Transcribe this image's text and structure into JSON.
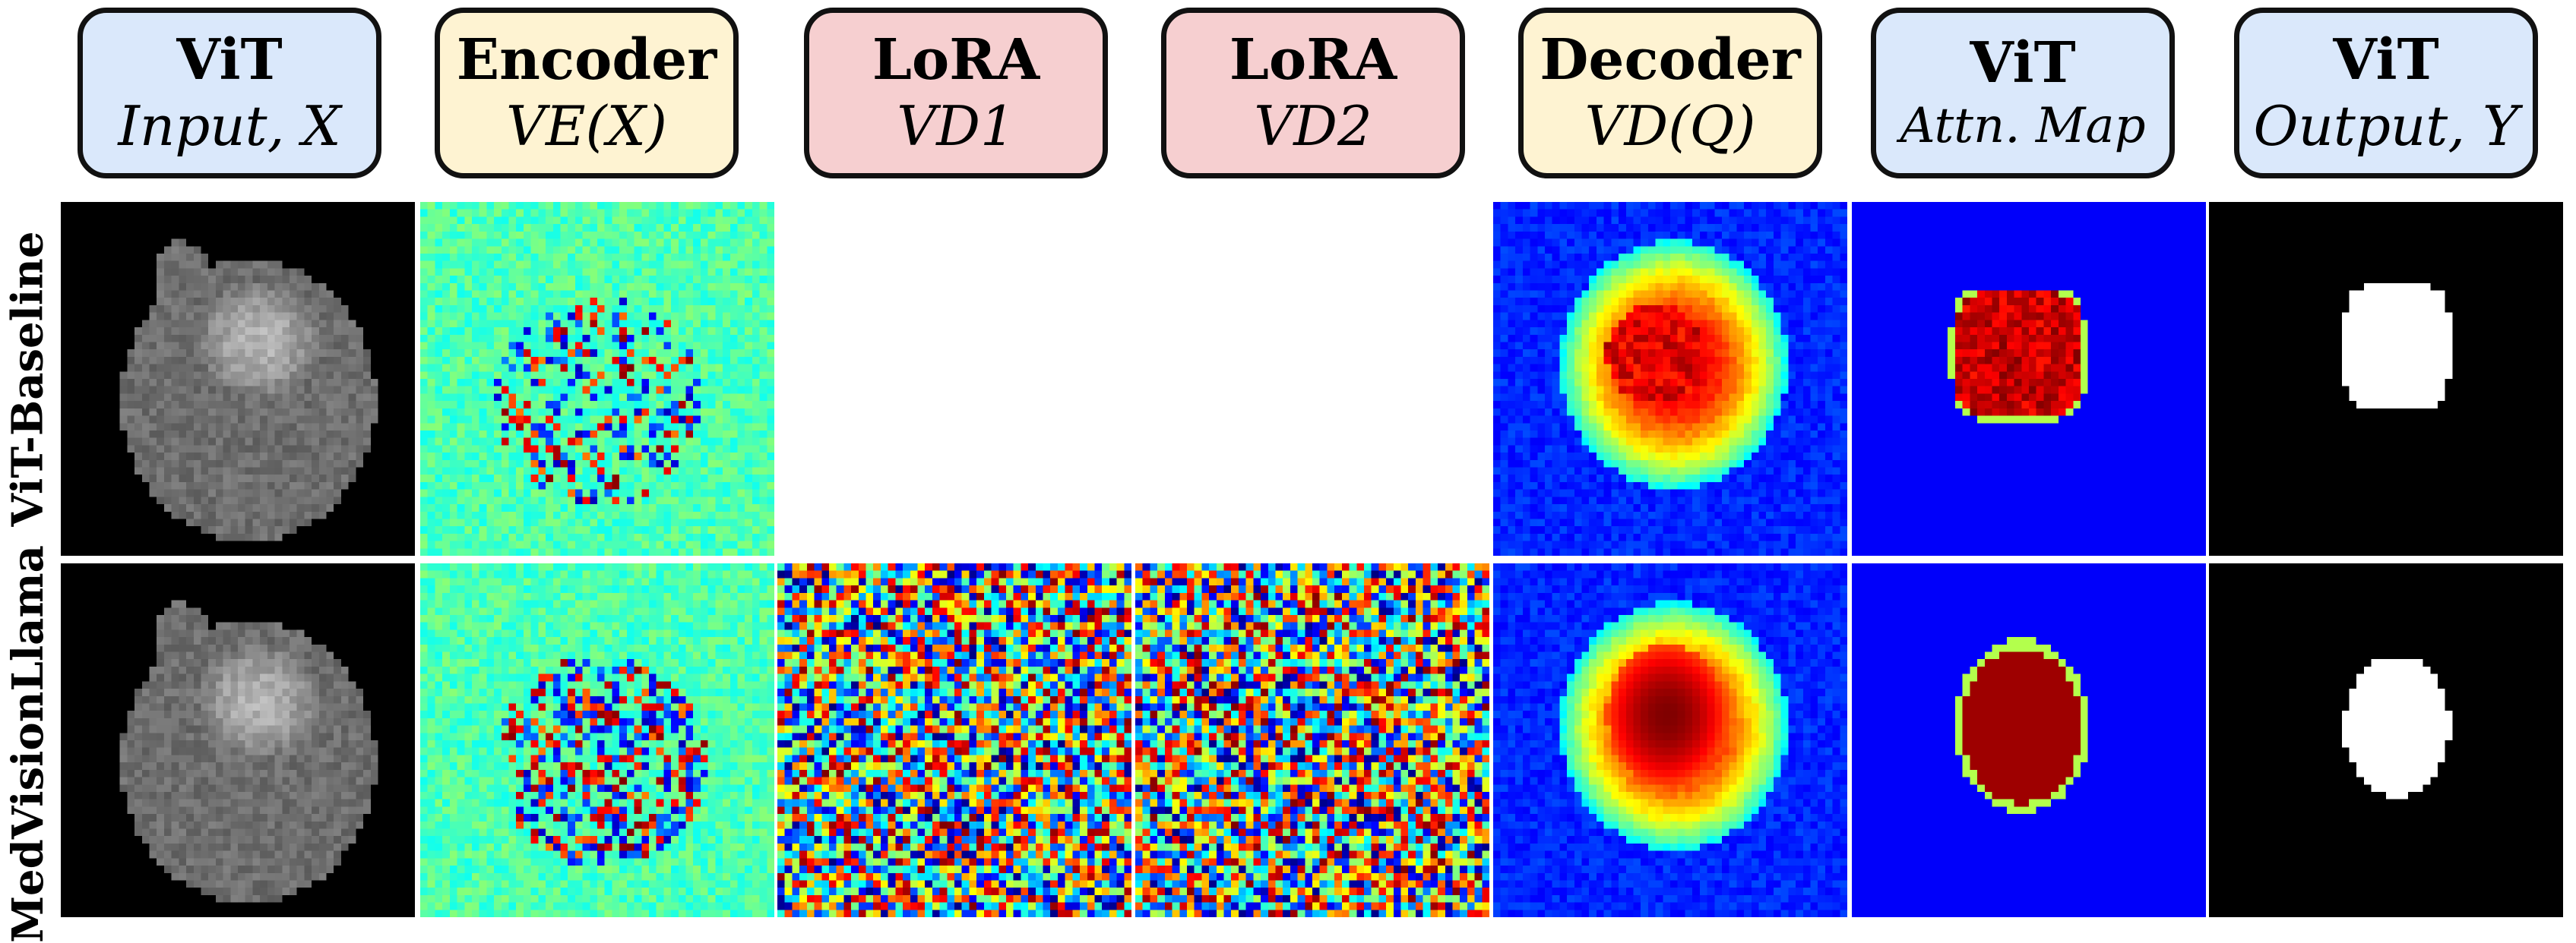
{
  "headers": [
    {
      "title": "ViT",
      "subtitle": "Input, X",
      "color": "blue"
    },
    {
      "title": "Encoder",
      "subtitle": "VE(X)",
      "color": "yellow"
    },
    {
      "title": "LoRA",
      "subtitle": "VD1",
      "color": "red"
    },
    {
      "title": "LoRA",
      "subtitle": "VD2",
      "color": "red"
    },
    {
      "title": "Decoder",
      "subtitle": "VD(Q)",
      "color": "yellow"
    },
    {
      "title": "ViT",
      "subtitle": "Attn. Map",
      "color": "blue"
    },
    {
      "title": "ViT",
      "subtitle": "Output, Y",
      "color": "blue"
    }
  ],
  "rows": [
    {
      "label": "ViT-Baseline"
    },
    {
      "label": "MedVisionLlama"
    }
  ],
  "colors": {
    "blue_header": "#dae8fb",
    "yellow_header": "#fef3d2",
    "red_header": "#f6cfd0",
    "border": "#111111"
  }
}
